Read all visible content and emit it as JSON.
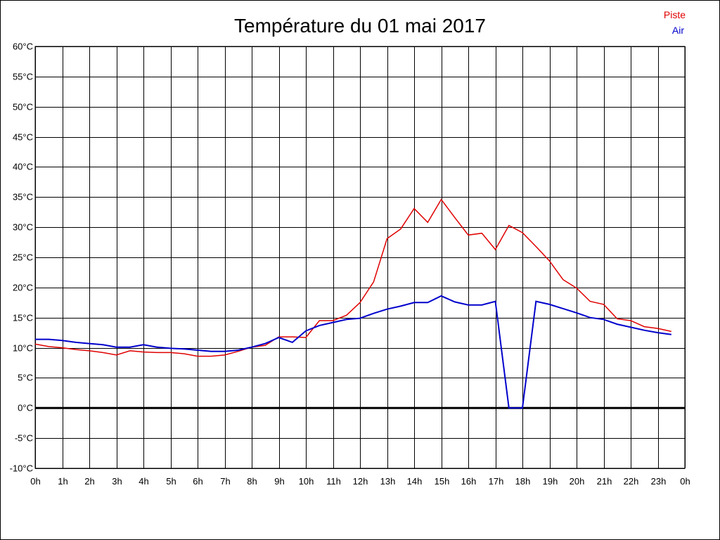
{
  "chart_data": {
    "type": "line",
    "title": "Température du 01 mai 2017",
    "legend_position": "top-right",
    "grid": true,
    "x_unit": "hour",
    "xlim": [
      0,
      24
    ],
    "ylim": [
      -10,
      60
    ],
    "x_ticks": [
      0,
      1,
      2,
      3,
      4,
      5,
      6,
      7,
      8,
      9,
      10,
      11,
      12,
      13,
      14,
      15,
      16,
      17,
      18,
      19,
      20,
      21,
      22,
      23,
      24
    ],
    "x_tick_labels": [
      "0h",
      "1h",
      "2h",
      "3h",
      "4h",
      "5h",
      "6h",
      "7h",
      "8h",
      "9h",
      "10h",
      "11h",
      "12h",
      "13h",
      "14h",
      "15h",
      "16h",
      "17h",
      "18h",
      "19h",
      "20h",
      "21h",
      "22h",
      "23h",
      "0h"
    ],
    "y_ticks": [
      -10,
      -5,
      0,
      5,
      10,
      15,
      20,
      25,
      30,
      35,
      40,
      45,
      50,
      55,
      60
    ],
    "y_tick_labels": [
      "-10°C",
      "-5°C",
      "0°C",
      "5°C",
      "10°C",
      "15°C",
      "20°C",
      "25°C",
      "30°C",
      "35°C",
      "40°C",
      "45°C",
      "50°C",
      "55°C",
      "60°C"
    ],
    "zero_line": 0,
    "x": [
      0,
      0.5,
      1,
      1.5,
      2,
      2.5,
      3,
      3.5,
      4,
      4.5,
      5,
      5.5,
      6,
      6.5,
      7,
      7.5,
      8,
      8.5,
      9,
      9.5,
      10,
      10.5,
      11,
      11.5,
      12,
      12.5,
      13,
      13.5,
      14,
      14.5,
      15,
      15.5,
      16,
      16.5,
      17,
      17.5,
      18,
      18.5,
      19,
      19.5,
      20,
      20.5,
      21,
      21.5,
      22,
      22.5,
      23,
      23.5
    ],
    "series": [
      {
        "name": "Piste",
        "color": "#e00000",
        "values": [
          10.6,
          10.2,
          10.0,
          9.7,
          9.5,
          9.2,
          8.8,
          9.5,
          9.3,
          9.2,
          9.2,
          9.0,
          8.6,
          8.6,
          8.8,
          9.4,
          10.1,
          10.4,
          11.8,
          11.8,
          11.7,
          14.5,
          14.5,
          15.4,
          17.5,
          20.9,
          28.1,
          29.7,
          33.1,
          30.8,
          34.6,
          31.6,
          28.7,
          29.0,
          26.3,
          30.3,
          29.1,
          26.8,
          24.4,
          21.3,
          19.9,
          17.7,
          17.2,
          14.8,
          14.5,
          13.5,
          13.2,
          12.7
        ]
      },
      {
        "name": "Air",
        "color": "#0000cc",
        "values": [
          11.4,
          11.4,
          11.2,
          10.9,
          10.7,
          10.5,
          10.1,
          10.1,
          10.5,
          10.1,
          9.9,
          9.8,
          9.6,
          9.4,
          9.4,
          9.6,
          10.1,
          10.7,
          11.7,
          10.9,
          12.8,
          13.7,
          14.2,
          14.7,
          14.9,
          15.7,
          16.4,
          16.9,
          17.5,
          17.5,
          18.6,
          17.6,
          17.1,
          17.1,
          17.7,
          0,
          0,
          17.7,
          17.2,
          16.5,
          15.8,
          15.0,
          14.7,
          13.9,
          13.4,
          12.9,
          12.5,
          12.2
        ]
      }
    ]
  }
}
